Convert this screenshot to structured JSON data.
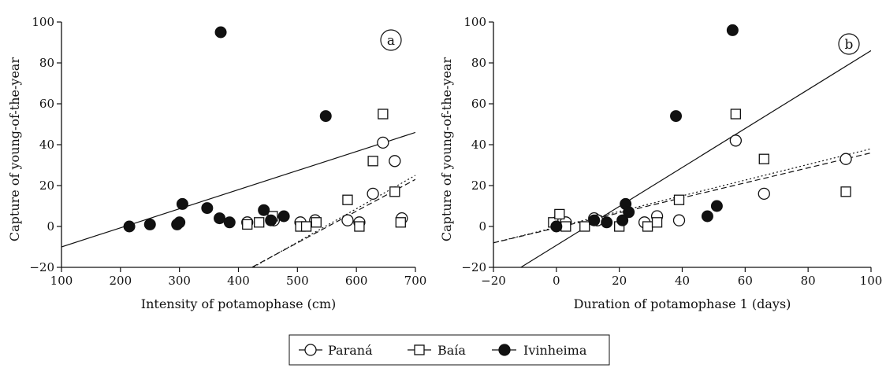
{
  "legend": {
    "items": [
      {
        "name": "Paraná",
        "marker": "circle-open"
      },
      {
        "name": "Baía",
        "marker": "square-open"
      },
      {
        "name": "Ivinheima",
        "marker": "circle-filled"
      }
    ]
  },
  "colors": {
    "ink": "#111111",
    "background": "#ffffff"
  },
  "chart_data": [
    {
      "type": "scatter",
      "panel_label": "a",
      "xlabel": "Intensity of potamophase (cm)",
      "ylabel": "Capture of young-of-the-year",
      "xlim": [
        100,
        700
      ],
      "ylim": [
        -20,
        100
      ],
      "xticks": [
        100,
        200,
        300,
        400,
        500,
        600,
        700
      ],
      "yticks": [
        -20,
        0,
        20,
        40,
        60,
        80,
        100
      ],
      "series": [
        {
          "name": "Paraná",
          "marker": "circle-open",
          "points": [
            [
              415,
              2
            ],
            [
              460,
              3
            ],
            [
              505,
              2
            ],
            [
              530,
              3
            ],
            [
              585,
              3
            ],
            [
              605,
              2
            ],
            [
              628,
              16
            ],
            [
              645,
              41
            ],
            [
              665,
              32
            ],
            [
              677,
              4
            ]
          ],
          "fit": {
            "style": "dotted",
            "from": [
              100,
              -73
            ],
            "to": [
              700,
              25
            ]
          }
        },
        {
          "name": "Baía",
          "marker": "square-open",
          "points": [
            [
              415,
              1
            ],
            [
              435,
              2
            ],
            [
              458,
              5
            ],
            [
              505,
              0
            ],
            [
              515,
              0
            ],
            [
              532,
              2
            ],
            [
              585,
              13
            ],
            [
              605,
              0
            ],
            [
              628,
              32
            ],
            [
              645,
              55
            ],
            [
              665,
              17
            ],
            [
              675,
              2
            ]
          ],
          "fit": {
            "style": "dashed",
            "from": [
              100,
              -70
            ],
            "to": [
              700,
              23
            ]
          }
        },
        {
          "name": "Ivinheima",
          "marker": "circle-filled",
          "points": [
            [
              215,
              0
            ],
            [
              250,
              1
            ],
            [
              296,
              1
            ],
            [
              300,
              2
            ],
            [
              305,
              11
            ],
            [
              347,
              9
            ],
            [
              368,
              4
            ],
            [
              370,
              95
            ],
            [
              385,
              2
            ],
            [
              443,
              8
            ],
            [
              455,
              3
            ],
            [
              477,
              5
            ],
            [
              548,
              54
            ]
          ],
          "fit": {
            "style": "solid",
            "from": [
              100,
              -10
            ],
            "to": [
              700,
              46
            ]
          }
        }
      ]
    },
    {
      "type": "scatter",
      "panel_label": "b",
      "xlabel": "Duration of potamophase 1 (days)",
      "ylabel": "Capture of young-of-the-year",
      "xlim": [
        -20,
        100
      ],
      "ylim": [
        -20,
        100
      ],
      "xticks": [
        -20,
        0,
        20,
        40,
        60,
        80,
        100
      ],
      "yticks": [
        -20,
        0,
        20,
        40,
        60,
        80,
        100
      ],
      "series": [
        {
          "name": "Paraná",
          "marker": "circle-open",
          "points": [
            [
              0,
              2
            ],
            [
              3,
              2
            ],
            [
              12,
              4
            ],
            [
              13,
              3
            ],
            [
              28,
              2
            ],
            [
              32,
              5
            ],
            [
              39,
              3
            ],
            [
              57,
              42
            ],
            [
              66,
              16
            ],
            [
              92,
              33
            ]
          ],
          "fit": {
            "style": "dotted",
            "from": [
              -20,
              -8
            ],
            "to": [
              100,
              38
            ]
          }
        },
        {
          "name": "Baía",
          "marker": "square-open",
          "points": [
            [
              -1,
              2
            ],
            [
              1,
              6
            ],
            [
              3,
              0
            ],
            [
              9,
              0
            ],
            [
              20,
              0
            ],
            [
              29,
              0
            ],
            [
              32,
              2
            ],
            [
              39,
              13
            ],
            [
              57,
              55
            ],
            [
              66,
              33
            ],
            [
              92,
              17
            ]
          ],
          "fit": {
            "style": "dashed",
            "from": [
              -20,
              -8
            ],
            "to": [
              100,
              36
            ]
          }
        },
        {
          "name": "Ivinheima",
          "marker": "circle-filled",
          "points": [
            [
              0,
              0
            ],
            [
              12,
              3
            ],
            [
              16,
              2
            ],
            [
              21,
              3
            ],
            [
              22,
              11
            ],
            [
              23,
              7
            ],
            [
              38,
              54
            ],
            [
              48,
              5
            ],
            [
              51,
              10
            ],
            [
              56,
              96
            ]
          ],
          "fit": {
            "style": "solid",
            "from": [
              -11.3,
              -20
            ],
            "to": [
              100,
              86
            ]
          }
        }
      ]
    }
  ]
}
